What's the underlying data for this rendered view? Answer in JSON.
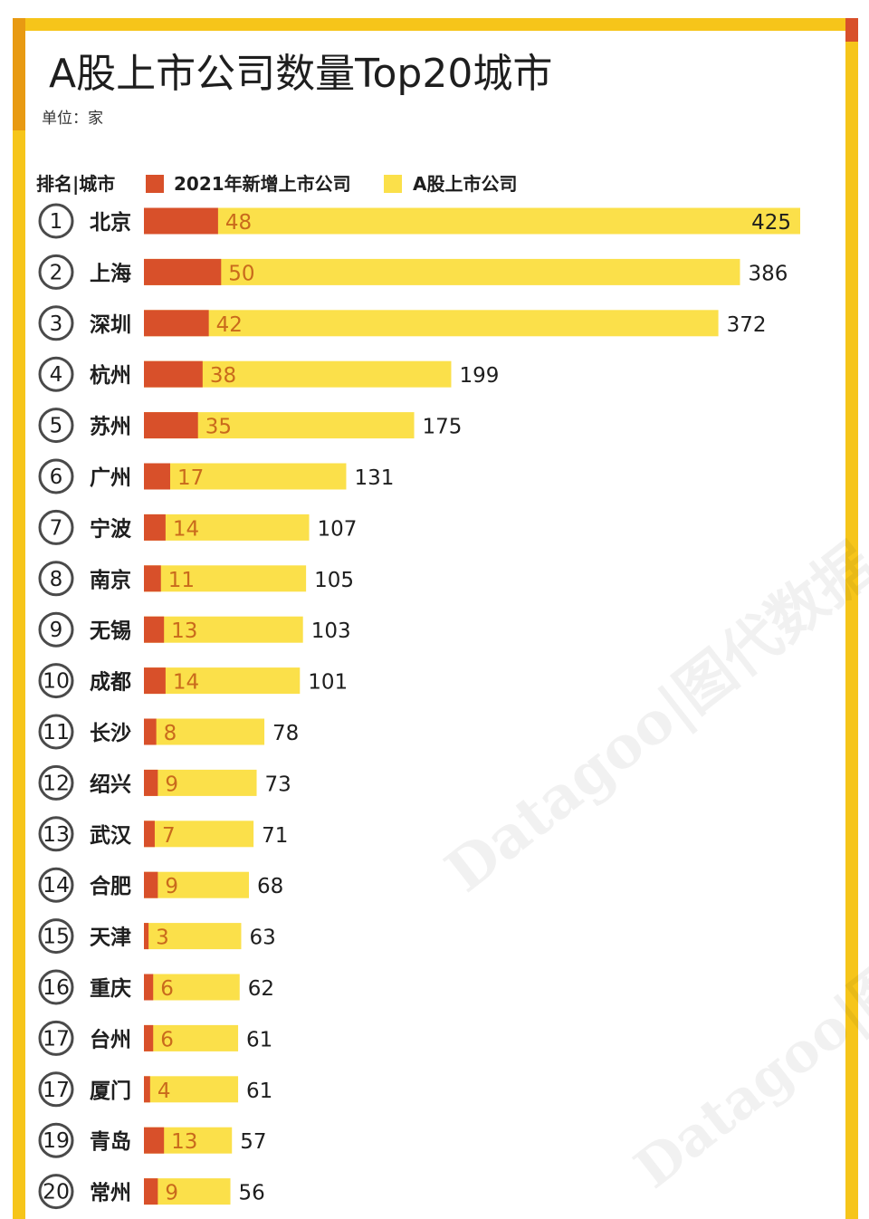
{
  "title": "A股上市公司数量Top20城市",
  "unit_label": "单位：家",
  "legend": {
    "header": "排名|城市",
    "new_label": "2021年新增上市公司",
    "total_label": "A股上市公司"
  },
  "watermark": "Datagoo|图代数据",
  "colors": {
    "total_bar": "#fbe04a",
    "new_bar": "#d8502a",
    "frame": "#f6c51a",
    "new_value_text": "#c96a1c"
  },
  "chart_data": {
    "type": "bar",
    "orientation": "horizontal",
    "stacking": "overlay",
    "categories": [
      "北京",
      "上海",
      "深圳",
      "杭州",
      "苏州",
      "广州",
      "宁波",
      "南京",
      "无锡",
      "成都",
      "长沙",
      "绍兴",
      "武汉",
      "合肥",
      "天津",
      "重庆",
      "台州",
      "厦门",
      "青岛",
      "常州"
    ],
    "ranks": [
      "1",
      "2",
      "3",
      "4",
      "5",
      "6",
      "7",
      "8",
      "9",
      "10",
      "11",
      "12",
      "13",
      "14",
      "15",
      "16",
      "17",
      "17",
      "19",
      "20"
    ],
    "series": [
      {
        "name": "A股上市公司",
        "values": [
          425,
          386,
          372,
          199,
          175,
          131,
          107,
          105,
          103,
          101,
          78,
          73,
          71,
          68,
          63,
          62,
          61,
          61,
          57,
          56
        ]
      },
      {
        "name": "2021年新增上市公司",
        "values": [
          48,
          50,
          42,
          38,
          35,
          17,
          14,
          11,
          13,
          14,
          8,
          9,
          7,
          9,
          3,
          6,
          6,
          4,
          13,
          9
        ]
      }
    ],
    "title": "A股上市公司数量Top20城市",
    "xlabel": "",
    "ylabel": "",
    "legend_position": "top-left",
    "grid": false
  }
}
